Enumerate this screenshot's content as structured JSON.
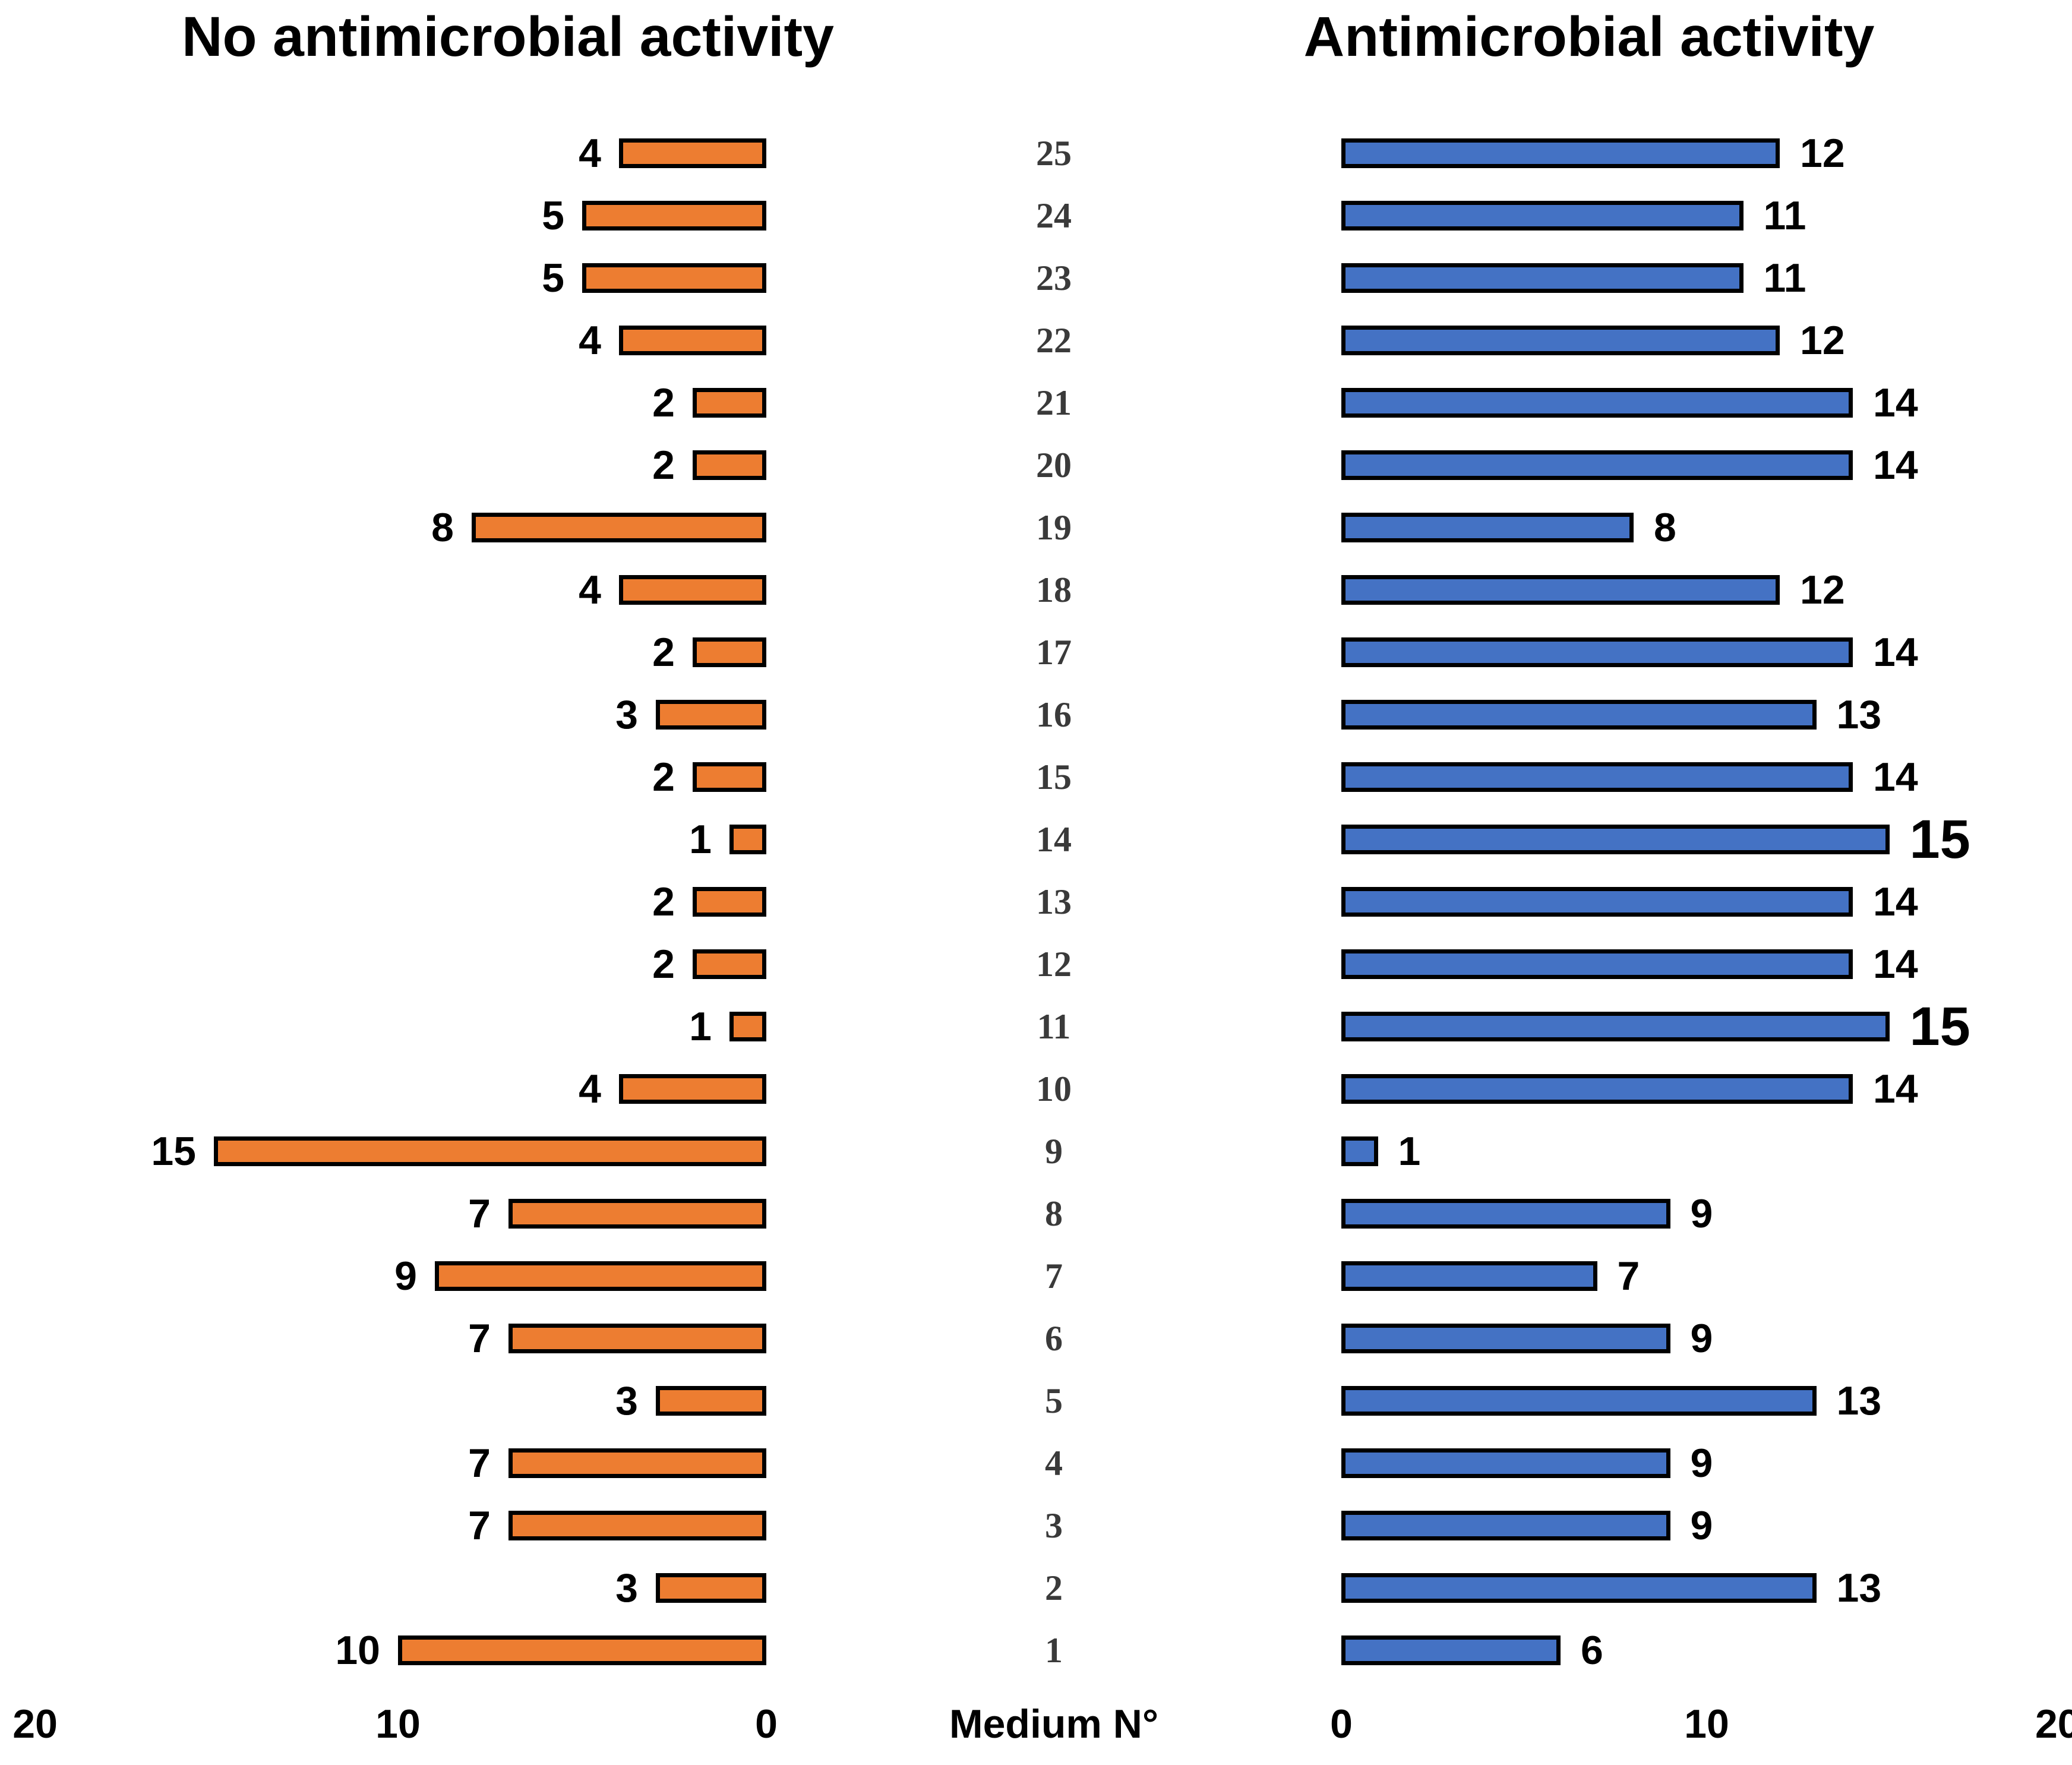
{
  "chart_data": {
    "type": "bar",
    "variant": "diverging-horizontal-butterfly",
    "categories": [
      25,
      24,
      23,
      22,
      21,
      20,
      19,
      18,
      17,
      16,
      15,
      14,
      13,
      12,
      11,
      10,
      9,
      8,
      7,
      6,
      5,
      4,
      3,
      2,
      1
    ],
    "series": [
      {
        "name": "No antimicrobial activity",
        "side": "left",
        "color": "#ED7D31",
        "values": [
          4,
          5,
          5,
          4,
          2,
          2,
          8,
          4,
          2,
          3,
          2,
          1,
          2,
          2,
          1,
          4,
          15,
          7,
          9,
          7,
          3,
          7,
          7,
          3,
          10
        ]
      },
      {
        "name": "Antimicrobial activity",
        "side": "right",
        "color": "#4472C4",
        "values": [
          12,
          11,
          11,
          12,
          14,
          14,
          8,
          12,
          14,
          13,
          14,
          15,
          14,
          14,
          15,
          14,
          1,
          9,
          7,
          9,
          13,
          9,
          9,
          13,
          6
        ]
      }
    ],
    "center_axis_label": "Medium N°",
    "x_range_each_side": [
      0,
      20
    ],
    "ticks": {
      "left": [
        "20",
        "10",
        "0"
      ],
      "right": [
        "0",
        "10",
        "20"
      ]
    },
    "grid": false,
    "data_labels": true,
    "large_right_value_labels_for_mediums": [
      14,
      11
    ],
    "bar_border_color": "#000000",
    "center_label_color": "#3a3a3a",
    "background": "#FFFFFF"
  }
}
